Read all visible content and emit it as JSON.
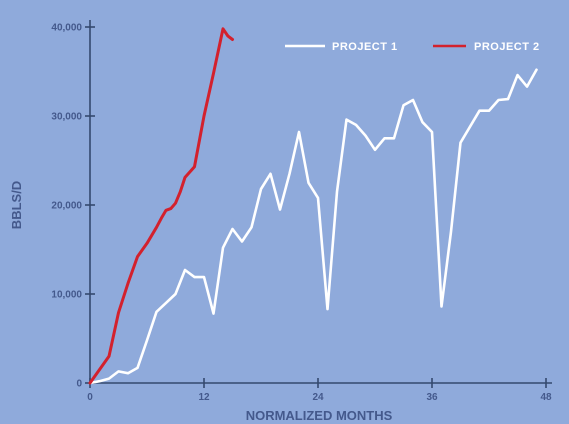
{
  "colors": {
    "background": "#8faadb",
    "axis": "#34496e",
    "label": "#44598c",
    "project_1": "#ffffff",
    "project_2": "#d3212d"
  },
  "chart_data": {
    "type": "line",
    "title": "",
    "xlabel": "NORMALIZED MONTHS",
    "ylabel": "BBLS/D",
    "xlim": [
      0,
      48
    ],
    "ylim": [
      0,
      40000
    ],
    "x_ticks": [
      0,
      12,
      24,
      36,
      48
    ],
    "y_ticks": [
      0,
      10000,
      20000,
      30000,
      40000
    ],
    "x_tick_labels": [
      "0",
      "12",
      "24",
      "36",
      "48"
    ],
    "y_tick_labels": [
      "0",
      "10,000",
      "20,000",
      "30,000",
      "40,000"
    ],
    "grid": false,
    "legend": {
      "placement": "top-right",
      "entries": [
        "PROJECT 1",
        "PROJECT 2"
      ]
    },
    "series": [
      {
        "name": "PROJECT 1",
        "x": [
          0,
          1,
          2,
          3,
          4,
          5,
          6,
          7,
          8,
          9,
          10,
          11,
          12,
          13,
          14,
          15,
          16,
          17,
          18,
          19,
          20,
          21,
          22,
          23,
          24,
          25,
          26,
          27,
          28,
          29,
          30,
          31,
          32,
          33,
          34,
          35,
          36,
          37,
          38,
          39,
          40,
          41,
          42,
          43,
          44,
          45,
          46,
          47,
          48
        ],
        "y": [
          0,
          200,
          500,
          1300,
          1100,
          1700,
          4800,
          8000,
          9000,
          10000,
          12700,
          11900,
          11900,
          7800,
          15200,
          17300,
          15900,
          17500,
          21800,
          23500,
          19500,
          23500,
          28200,
          22500,
          20800,
          8300,
          21500,
          29600,
          29000,
          27800,
          26200,
          27500,
          27500,
          31200,
          31800,
          29300,
          28200,
          8600,
          17000,
          27000,
          28800,
          30600,
          30600,
          31800,
          31900,
          34600,
          33300,
          35200,
          null
        ]
      },
      {
        "name": "PROJECT 2",
        "x": [
          0,
          1,
          2,
          3,
          4,
          5,
          6,
          7,
          7.5,
          8,
          8.5,
          9,
          9.5,
          10,
          11,
          12,
          13,
          14,
          14.5,
          15
        ],
        "y": [
          0,
          1500,
          3000,
          7900,
          11200,
          14200,
          15700,
          17500,
          18500,
          19400,
          19600,
          20200,
          21500,
          23100,
          24300,
          30000,
          34800,
          39800,
          39000,
          38600
        ]
      }
    ]
  }
}
